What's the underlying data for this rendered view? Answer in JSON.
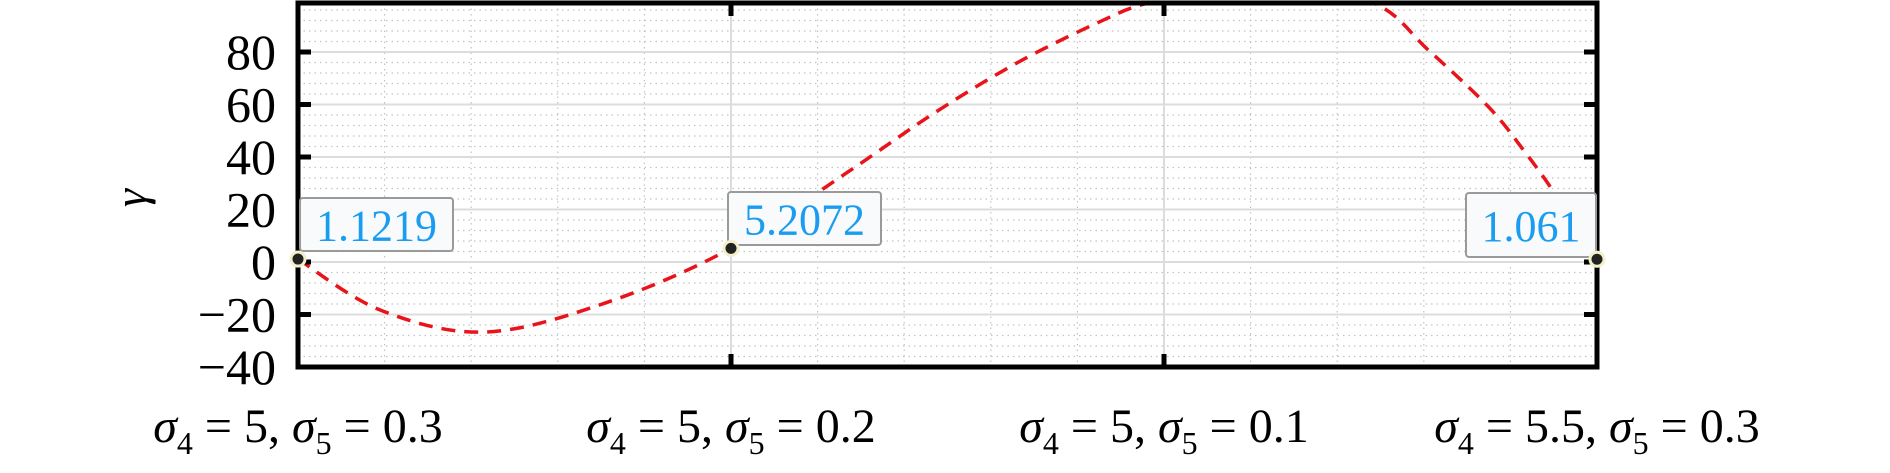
{
  "chart_data": {
    "type": "line",
    "title": "",
    "xlabel": "",
    "ylabel": "γ",
    "categories": [
      {
        "s4": "5",
        "s5": "0.3"
      },
      {
        "s4": "5",
        "s5": "0.2"
      },
      {
        "s4": "5",
        "s5": "0.1"
      },
      {
        "s4": "5.5",
        "s5": "0.3"
      }
    ],
    "category_label_template": [
      "σ",
      "4",
      " = ",
      ", ",
      "σ",
      "5",
      " = "
    ],
    "ylim": [
      -40,
      100
    ],
    "yticks": [
      -40,
      -20,
      0,
      20,
      40,
      60,
      80
    ],
    "ytick_labels": [
      "−40",
      "−20",
      "0",
      "20",
      "40",
      "60",
      "80"
    ],
    "grid": true,
    "minor_grid": true,
    "series": [
      {
        "style": "dashed",
        "color": "#e8141a",
        "x": [
          1,
          1.19,
          1.43,
          1.71,
          2,
          2.27,
          2.47,
          2.66,
          2.85,
          2.97,
          3.22,
          3.48,
          3.61,
          3.75,
          3.83,
          3.9,
          4
        ],
        "y": [
          1.12,
          -18.3,
          -26.7,
          -15.6,
          5.21,
          34.3,
          56.8,
          75.8,
          91.4,
          99,
          108,
          99,
          80.8,
          59,
          42.7,
          26.7,
          1.06
        ]
      }
    ],
    "data_tips": [
      {
        "x": 1,
        "y": 1.1219,
        "label": "1.1219"
      },
      {
        "x": 2,
        "y": 5.2072,
        "label": "5.2072"
      },
      {
        "x": 4,
        "y": 1.061,
        "label": "1.061"
      }
    ],
    "colors": {
      "curve": "#e8141a",
      "datatip_text": "#1a9cf0",
      "marker": "#222222"
    }
  }
}
